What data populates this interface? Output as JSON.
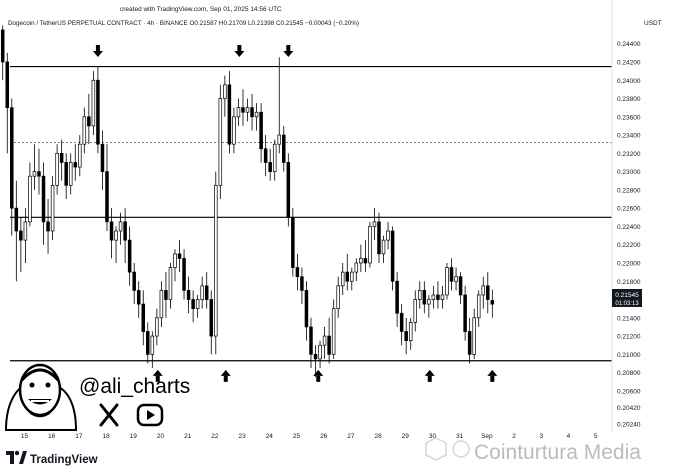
{
  "header": {
    "created_text": "created with TradingView.com, Sep 01, 2025 14:56 UTC",
    "symbol_line": "Dogecoin / TetherUS PERPETUAL CONTRACT · 4h · BINANCE  O0.21587  H0.21709  L0.21398  C0.21545  −0.00043 (−0.20%)",
    "currency": "USDT"
  },
  "price_box": {
    "price": "0.21545",
    "countdown": "01:03:13"
  },
  "branding": {
    "handle": "@ali_charts",
    "x_icon": "x-logo-icon",
    "youtube_icon": "youtube-icon",
    "tradingview_label": "TradingView",
    "watermark": "Cointurtura Media"
  },
  "colors": {
    "bull": "#ffffff",
    "bear": "#000000",
    "level_line": "#000000",
    "accent": "#2962ff"
  },
  "chart_data": {
    "type": "candlestick",
    "symbol": "DOGEUSDT.P",
    "timeframe": "4h",
    "y_ticks": [
      "0.24400",
      "0.24200",
      "0.24000",
      "0.23800",
      "0.23600",
      "0.23400",
      "0.23200",
      "0.23000",
      "0.22800",
      "0.22600",
      "0.22400",
      "0.22200",
      "0.22000",
      "0.21800",
      "0.21600",
      "0.21400",
      "0.21200",
      "0.21000",
      "0.20800",
      "0.20600",
      "0.20420",
      "0.20240"
    ],
    "x_ticks": [
      "15",
      "16",
      "17",
      "18",
      "19",
      "20",
      "21",
      "22",
      "23",
      "24",
      "25",
      "26",
      "27",
      "28",
      "29",
      "30",
      "31",
      "Sep",
      "2",
      "3",
      "4",
      "5"
    ],
    "x_tick_values": [
      15,
      16,
      17,
      18,
      19,
      20,
      21,
      22,
      23,
      24,
      25,
      26,
      27,
      28,
      29,
      30,
      31,
      32,
      33,
      34,
      35,
      36
    ],
    "ylim": [
      0.2015,
      0.2455
    ],
    "xlim": [
      14.1,
      36.6
    ],
    "horizontal_levels": [
      {
        "price": 0.2415,
        "style": "solid"
      },
      {
        "price": 0.2332,
        "style": "dashed"
      },
      {
        "price": 0.225,
        "style": "solid"
      },
      {
        "price": 0.2093,
        "style": "solid"
      }
    ],
    "sell_arrows": [
      17.7,
      22.9,
      24.7
    ],
    "buy_arrows": [
      19.9,
      22.4,
      25.8,
      29.9,
      32.2
    ],
    "candles": [
      {
        "t": 14.2,
        "o": 0.2455,
        "h": 0.246,
        "c": 0.242,
        "l": 0.24
      },
      {
        "t": 14.3667,
        "o": 0.242,
        "h": 0.243,
        "c": 0.237,
        "l": 0.232
      },
      {
        "t": 14.5333,
        "o": 0.237,
        "h": 0.238,
        "c": 0.226,
        "l": 0.223
      },
      {
        "t": 14.7,
        "o": 0.226,
        "h": 0.229,
        "c": 0.2235,
        "l": 0.218
      },
      {
        "t": 14.8667,
        "o": 0.2235,
        "h": 0.225,
        "c": 0.2225,
        "l": 0.219
      },
      {
        "t": 15.0333,
        "o": 0.2225,
        "h": 0.226,
        "c": 0.2245,
        "l": 0.22
      },
      {
        "t": 15.2,
        "o": 0.2245,
        "h": 0.231,
        "c": 0.2295,
        "l": 0.224
      },
      {
        "t": 15.3667,
        "o": 0.2295,
        "h": 0.233,
        "c": 0.23,
        "l": 0.228
      },
      {
        "t": 15.5333,
        "o": 0.23,
        "h": 0.2325,
        "c": 0.2295,
        "l": 0.2275
      },
      {
        "t": 15.7,
        "o": 0.2295,
        "h": 0.231,
        "c": 0.2245,
        "l": 0.222
      },
      {
        "t": 15.8667,
        "o": 0.2245,
        "h": 0.227,
        "c": 0.2235,
        "l": 0.221
      },
      {
        "t": 16.0333,
        "o": 0.2235,
        "h": 0.2295,
        "c": 0.2285,
        "l": 0.2225
      },
      {
        "t": 16.2,
        "o": 0.2285,
        "h": 0.233,
        "c": 0.232,
        "l": 0.2275
      },
      {
        "t": 16.3667,
        "o": 0.232,
        "h": 0.2335,
        "c": 0.231,
        "l": 0.229
      },
      {
        "t": 16.5333,
        "o": 0.231,
        "h": 0.232,
        "c": 0.2285,
        "l": 0.227
      },
      {
        "t": 16.7,
        "o": 0.2285,
        "h": 0.232,
        "c": 0.231,
        "l": 0.2275
      },
      {
        "t": 16.8667,
        "o": 0.231,
        "h": 0.233,
        "c": 0.2305,
        "l": 0.229
      },
      {
        "t": 17.0333,
        "o": 0.2305,
        "h": 0.234,
        "c": 0.233,
        "l": 0.2295
      },
      {
        "t": 17.2,
        "o": 0.233,
        "h": 0.237,
        "c": 0.236,
        "l": 0.232
      },
      {
        "t": 17.3667,
        "o": 0.236,
        "h": 0.2385,
        "c": 0.235,
        "l": 0.233
      },
      {
        "t": 17.5333,
        "o": 0.235,
        "h": 0.241,
        "c": 0.24,
        "l": 0.234
      },
      {
        "t": 17.7,
        "o": 0.24,
        "h": 0.2415,
        "c": 0.233,
        "l": 0.232
      },
      {
        "t": 17.8667,
        "o": 0.233,
        "h": 0.2345,
        "c": 0.23,
        "l": 0.228
      },
      {
        "t": 18.0333,
        "o": 0.23,
        "h": 0.233,
        "c": 0.2245,
        "l": 0.2235
      },
      {
        "t": 18.2,
        "o": 0.2245,
        "h": 0.226,
        "c": 0.2225,
        "l": 0.2205
      },
      {
        "t": 18.3667,
        "o": 0.2225,
        "h": 0.224,
        "c": 0.2235,
        "l": 0.22
      },
      {
        "t": 18.5333,
        "o": 0.2235,
        "h": 0.2255,
        "c": 0.2245,
        "l": 0.222
      },
      {
        "t": 18.7,
        "o": 0.2245,
        "h": 0.226,
        "c": 0.2225,
        "l": 0.22
      },
      {
        "t": 18.8667,
        "o": 0.2225,
        "h": 0.224,
        "c": 0.219,
        "l": 0.2175
      },
      {
        "t": 19.0333,
        "o": 0.219,
        "h": 0.22,
        "c": 0.217,
        "l": 0.2155
      },
      {
        "t": 19.2,
        "o": 0.217,
        "h": 0.218,
        "c": 0.2155,
        "l": 0.214
      },
      {
        "t": 19.3667,
        "o": 0.2155,
        "h": 0.217,
        "c": 0.2125,
        "l": 0.211
      },
      {
        "t": 19.5333,
        "o": 0.2125,
        "h": 0.2135,
        "c": 0.21,
        "l": 0.209
      },
      {
        "t": 19.7,
        "o": 0.21,
        "h": 0.2125,
        "c": 0.212,
        "l": 0.2085
      },
      {
        "t": 19.8667,
        "o": 0.212,
        "h": 0.215,
        "c": 0.214,
        "l": 0.211
      },
      {
        "t": 20.0333,
        "o": 0.214,
        "h": 0.218,
        "c": 0.217,
        "l": 0.213
      },
      {
        "t": 20.2,
        "o": 0.217,
        "h": 0.219,
        "c": 0.216,
        "l": 0.214
      },
      {
        "t": 20.3667,
        "o": 0.216,
        "h": 0.22,
        "c": 0.2195,
        "l": 0.215
      },
      {
        "t": 20.5333,
        "o": 0.2195,
        "h": 0.2215,
        "c": 0.221,
        "l": 0.218
      },
      {
        "t": 20.7,
        "o": 0.221,
        "h": 0.2225,
        "c": 0.2205,
        "l": 0.219
      },
      {
        "t": 20.8667,
        "o": 0.2205,
        "h": 0.2215,
        "c": 0.217,
        "l": 0.216
      },
      {
        "t": 21.0333,
        "o": 0.217,
        "h": 0.2185,
        "c": 0.216,
        "l": 0.2145
      },
      {
        "t": 21.2,
        "o": 0.216,
        "h": 0.217,
        "c": 0.215,
        "l": 0.2135
      },
      {
        "t": 21.3667,
        "o": 0.215,
        "h": 0.2165,
        "c": 0.216,
        "l": 0.214
      },
      {
        "t": 21.5333,
        "o": 0.216,
        "h": 0.2185,
        "c": 0.2175,
        "l": 0.215
      },
      {
        "t": 21.7,
        "o": 0.2175,
        "h": 0.219,
        "c": 0.216,
        "l": 0.215
      },
      {
        "t": 21.8667,
        "o": 0.216,
        "h": 0.217,
        "c": 0.212,
        "l": 0.21
      },
      {
        "t": 22.0333,
        "o": 0.212,
        "h": 0.23,
        "c": 0.2285,
        "l": 0.21
      },
      {
        "t": 22.2,
        "o": 0.2285,
        "h": 0.2395,
        "c": 0.238,
        "l": 0.227
      },
      {
        "t": 22.3667,
        "o": 0.238,
        "h": 0.2405,
        "c": 0.2395,
        "l": 0.236
      },
      {
        "t": 22.5333,
        "o": 0.2395,
        "h": 0.241,
        "c": 0.233,
        "l": 0.232
      },
      {
        "t": 22.7,
        "o": 0.233,
        "h": 0.237,
        "c": 0.236,
        "l": 0.232
      },
      {
        "t": 22.8667,
        "o": 0.236,
        "h": 0.238,
        "c": 0.237,
        "l": 0.235
      },
      {
        "t": 23.0333,
        "o": 0.237,
        "h": 0.239,
        "c": 0.2365,
        "l": 0.235
      },
      {
        "t": 23.2,
        "o": 0.2365,
        "h": 0.238,
        "c": 0.237,
        "l": 0.2355
      },
      {
        "t": 23.3667,
        "o": 0.237,
        "h": 0.2385,
        "c": 0.236,
        "l": 0.2345
      },
      {
        "t": 23.5333,
        "o": 0.236,
        "h": 0.2375,
        "c": 0.2365,
        "l": 0.2345
      },
      {
        "t": 23.7,
        "o": 0.2365,
        "h": 0.2375,
        "c": 0.2325,
        "l": 0.231
      },
      {
        "t": 23.8667,
        "o": 0.2325,
        "h": 0.234,
        "c": 0.231,
        "l": 0.2295
      },
      {
        "t": 24.0333,
        "o": 0.231,
        "h": 0.2325,
        "c": 0.23,
        "l": 0.229
      },
      {
        "t": 24.2,
        "o": 0.23,
        "h": 0.2335,
        "c": 0.233,
        "l": 0.229
      },
      {
        "t": 24.3667,
        "o": 0.233,
        "h": 0.2425,
        "c": 0.234,
        "l": 0.232
      },
      {
        "t": 24.5333,
        "o": 0.234,
        "h": 0.235,
        "c": 0.231,
        "l": 0.23
      },
      {
        "t": 24.7,
        "o": 0.231,
        "h": 0.232,
        "c": 0.225,
        "l": 0.224
      },
      {
        "t": 24.8667,
        "o": 0.225,
        "h": 0.226,
        "c": 0.2195,
        "l": 0.2185
      },
      {
        "t": 25.0333,
        "o": 0.2195,
        "h": 0.221,
        "c": 0.2185,
        "l": 0.217
      },
      {
        "t": 25.2,
        "o": 0.2185,
        "h": 0.2195,
        "c": 0.217,
        "l": 0.2155
      },
      {
        "t": 25.3667,
        "o": 0.217,
        "h": 0.218,
        "c": 0.213,
        "l": 0.2115
      },
      {
        "t": 25.5333,
        "o": 0.213,
        "h": 0.214,
        "c": 0.21,
        "l": 0.2085
      },
      {
        "t": 25.7,
        "o": 0.21,
        "h": 0.211,
        "c": 0.2095,
        "l": 0.2075
      },
      {
        "t": 25.8667,
        "o": 0.2095,
        "h": 0.2115,
        "c": 0.211,
        "l": 0.2085
      },
      {
        "t": 26.0333,
        "o": 0.211,
        "h": 0.213,
        "c": 0.212,
        "l": 0.2095
      },
      {
        "t": 26.2,
        "o": 0.212,
        "h": 0.214,
        "c": 0.21,
        "l": 0.209
      },
      {
        "t": 26.3667,
        "o": 0.21,
        "h": 0.216,
        "c": 0.215,
        "l": 0.2095
      },
      {
        "t": 26.5333,
        "o": 0.215,
        "h": 0.2185,
        "c": 0.2175,
        "l": 0.214
      },
      {
        "t": 26.7,
        "o": 0.2175,
        "h": 0.22,
        "c": 0.219,
        "l": 0.2165
      },
      {
        "t": 26.8667,
        "o": 0.219,
        "h": 0.221,
        "c": 0.218,
        "l": 0.217
      },
      {
        "t": 27.0333,
        "o": 0.218,
        "h": 0.2195,
        "c": 0.219,
        "l": 0.217
      },
      {
        "t": 27.2,
        "o": 0.219,
        "h": 0.2205,
        "c": 0.22,
        "l": 0.218
      },
      {
        "t": 27.3667,
        "o": 0.22,
        "h": 0.222,
        "c": 0.2205,
        "l": 0.219
      },
      {
        "t": 27.5333,
        "o": 0.2205,
        "h": 0.2225,
        "c": 0.22,
        "l": 0.219
      },
      {
        "t": 27.7,
        "o": 0.22,
        "h": 0.2245,
        "c": 0.224,
        "l": 0.2195
      },
      {
        "t": 27.8667,
        "o": 0.224,
        "h": 0.226,
        "c": 0.2245,
        "l": 0.2225
      },
      {
        "t": 28.0333,
        "o": 0.2245,
        "h": 0.2255,
        "c": 0.221,
        "l": 0.22
      },
      {
        "t": 28.2,
        "o": 0.221,
        "h": 0.223,
        "c": 0.2225,
        "l": 0.22
      },
      {
        "t": 28.3667,
        "o": 0.2225,
        "h": 0.2245,
        "c": 0.2235,
        "l": 0.2215
      },
      {
        "t": 28.5333,
        "o": 0.2235,
        "h": 0.224,
        "c": 0.218,
        "l": 0.217
      },
      {
        "t": 28.7,
        "o": 0.218,
        "h": 0.219,
        "c": 0.2145,
        "l": 0.213
      },
      {
        "t": 28.8667,
        "o": 0.2145,
        "h": 0.2155,
        "c": 0.2125,
        "l": 0.211
      },
      {
        "t": 29.0333,
        "o": 0.2125,
        "h": 0.214,
        "c": 0.2115,
        "l": 0.21
      },
      {
        "t": 29.2,
        "o": 0.2115,
        "h": 0.214,
        "c": 0.2135,
        "l": 0.2105
      },
      {
        "t": 29.3667,
        "o": 0.2135,
        "h": 0.217,
        "c": 0.216,
        "l": 0.2125
      },
      {
        "t": 29.5333,
        "o": 0.216,
        "h": 0.218,
        "c": 0.217,
        "l": 0.215
      },
      {
        "t": 29.7,
        "o": 0.217,
        "h": 0.218,
        "c": 0.2155,
        "l": 0.2145
      },
      {
        "t": 29.8667,
        "o": 0.2155,
        "h": 0.2165,
        "c": 0.216,
        "l": 0.214
      },
      {
        "t": 30.0333,
        "o": 0.216,
        "h": 0.2175,
        "c": 0.2165,
        "l": 0.215
      },
      {
        "t": 30.2,
        "o": 0.2165,
        "h": 0.218,
        "c": 0.216,
        "l": 0.215
      },
      {
        "t": 30.3667,
        "o": 0.216,
        "h": 0.2175,
        "c": 0.2165,
        "l": 0.215
      },
      {
        "t": 30.5333,
        "o": 0.2165,
        "h": 0.22,
        "c": 0.2195,
        "l": 0.216
      },
      {
        "t": 30.7,
        "o": 0.2195,
        "h": 0.2205,
        "c": 0.218,
        "l": 0.217
      },
      {
        "t": 30.8667,
        "o": 0.218,
        "h": 0.2195,
        "c": 0.2185,
        "l": 0.217
      },
      {
        "t": 31.0333,
        "o": 0.2185,
        "h": 0.219,
        "c": 0.2165,
        "l": 0.2155
      },
      {
        "t": 31.2,
        "o": 0.2165,
        "h": 0.2175,
        "c": 0.2125,
        "l": 0.2115
      },
      {
        "t": 31.3667,
        "o": 0.2125,
        "h": 0.214,
        "c": 0.21,
        "l": 0.209
      },
      {
        "t": 31.5333,
        "o": 0.21,
        "h": 0.215,
        "c": 0.214,
        "l": 0.2095
      },
      {
        "t": 31.7,
        "o": 0.214,
        "h": 0.217,
        "c": 0.2165,
        "l": 0.213
      },
      {
        "t": 31.8667,
        "o": 0.2165,
        "h": 0.2185,
        "c": 0.2175,
        "l": 0.215
      },
      {
        "t": 32.0333,
        "o": 0.2175,
        "h": 0.219,
        "c": 0.216,
        "l": 0.2145
      },
      {
        "t": 32.2,
        "o": 0.2159,
        "h": 0.2171,
        "c": 0.2155,
        "l": 0.214
      }
    ]
  }
}
